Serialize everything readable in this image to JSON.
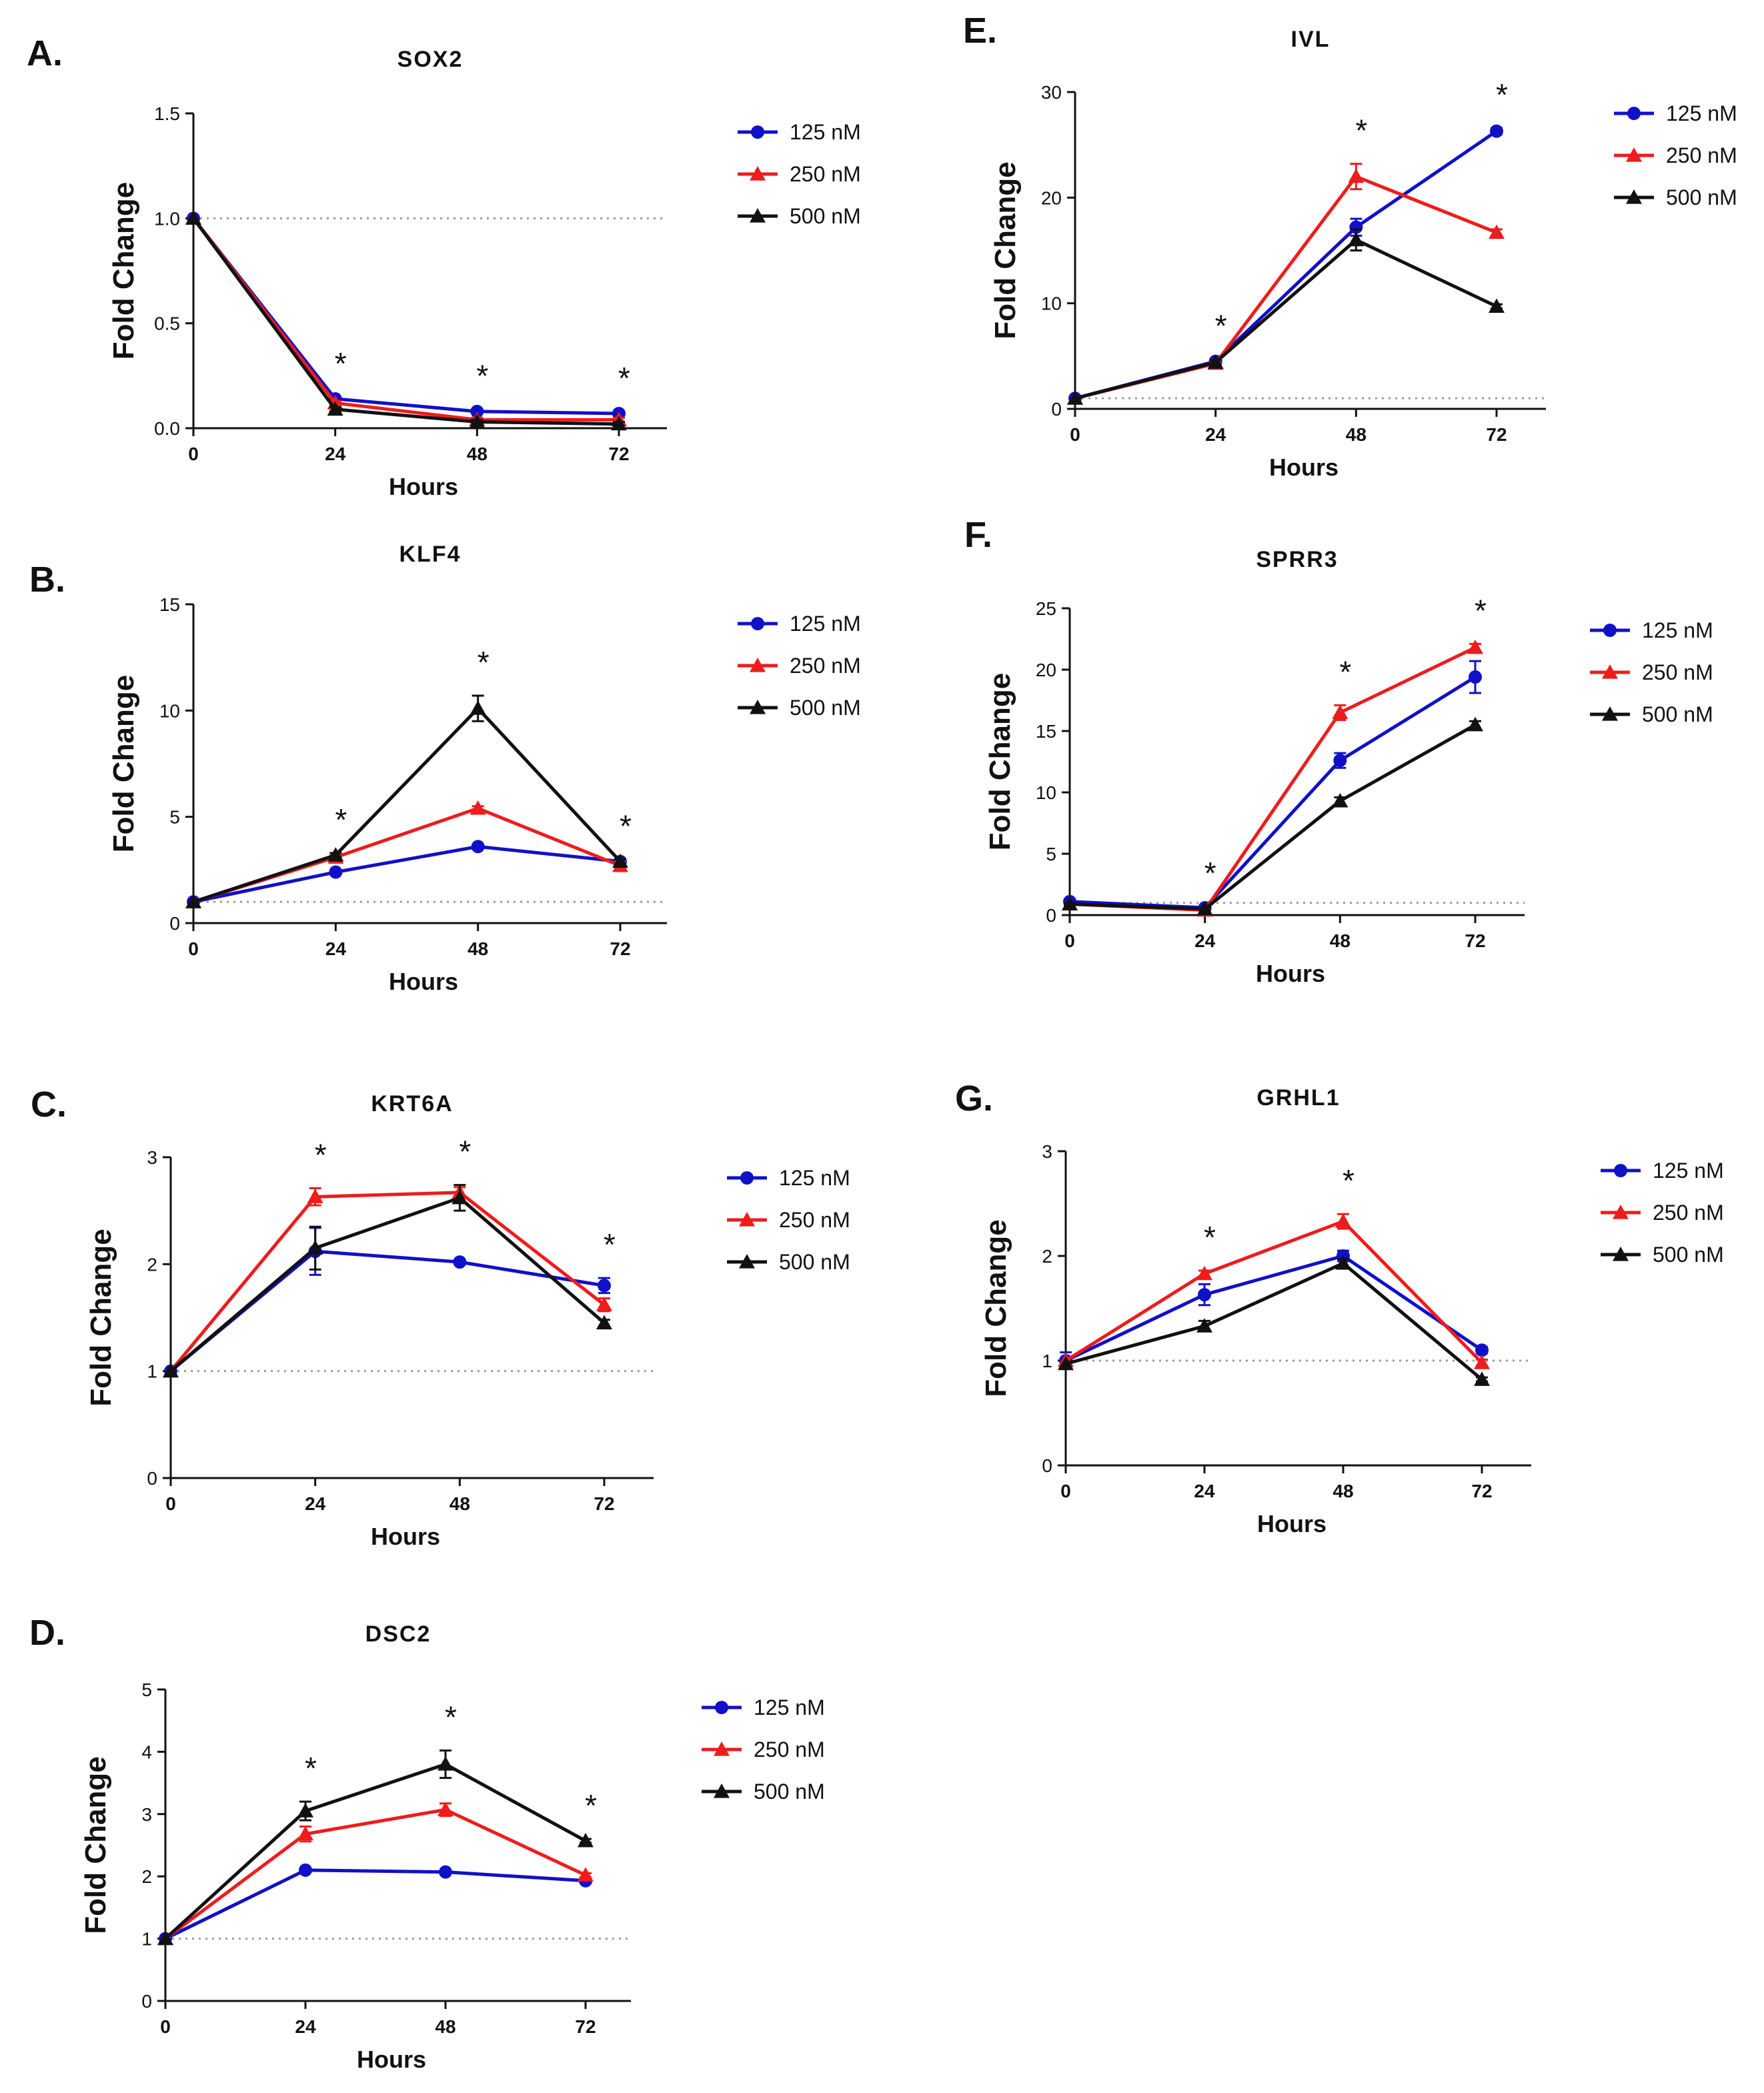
{
  "figure": {
    "series_colors": {
      "125 nM": "#1010c8",
      "250 nM": "#ee1c1c",
      "500 nM": "#111111"
    },
    "axis_color": "#111111",
    "baseline_color": "#9a9a9a"
  },
  "chart_data": [
    {
      "panel": "A.",
      "type": "line",
      "title": "SOX2",
      "xlabel": "Hours",
      "ylabel": "Fold Change",
      "x": [
        0,
        24,
        48,
        72
      ],
      "xticks": [
        "0",
        "24",
        "48",
        "72"
      ],
      "ylim": [
        0,
        1.5
      ],
      "yticks": [
        "0.0",
        "0.5",
        "1.0",
        "1.5"
      ],
      "ytick_values": [
        0,
        0.5,
        1.0,
        1.5
      ],
      "baseline": 1,
      "significance": [
        "",
        "*",
        "*",
        "*"
      ],
      "series": [
        {
          "name": "125 nM",
          "marker": "circle",
          "values": [
            1.0,
            0.14,
            0.08,
            0.07
          ],
          "errors": [
            0,
            0.01,
            0.01,
            0.01
          ]
        },
        {
          "name": "250 nM",
          "marker": "triangle",
          "values": [
            1.0,
            0.12,
            0.04,
            0.04
          ],
          "errors": [
            0,
            0.01,
            0.01,
            0.01
          ]
        },
        {
          "name": "500 nM",
          "marker": "triangle",
          "values": [
            1.0,
            0.09,
            0.03,
            0.02
          ],
          "errors": [
            0,
            0.01,
            0.01,
            0.01
          ]
        }
      ]
    },
    {
      "panel": "B.",
      "type": "line",
      "title": "KLF4",
      "xlabel": "Hours",
      "ylabel": "Fold Change",
      "x": [
        0,
        24,
        48,
        72
      ],
      "xticks": [
        "0",
        "24",
        "48",
        "72"
      ],
      "ylim": [
        0,
        15
      ],
      "yticks": [
        "0",
        "5",
        "10",
        "15"
      ],
      "ytick_values": [
        0,
        5,
        10,
        15
      ],
      "baseline": 1,
      "significance": [
        "",
        "*",
        "*",
        "*"
      ],
      "series": [
        {
          "name": "125 nM",
          "marker": "circle",
          "values": [
            1.0,
            2.4,
            3.6,
            2.9
          ],
          "errors": [
            0,
            0.1,
            0.1,
            0.1
          ]
        },
        {
          "name": "250 nM",
          "marker": "triangle",
          "values": [
            1.0,
            3.1,
            5.4,
            2.7
          ],
          "errors": [
            0,
            0.1,
            0.1,
            0.2
          ]
        },
        {
          "name": "500 nM",
          "marker": "triangle",
          "values": [
            1.0,
            3.2,
            10.1,
            2.9
          ],
          "errors": [
            0,
            0.1,
            0.6,
            0.1
          ]
        }
      ]
    },
    {
      "panel": "C.",
      "type": "line",
      "title": "KRT6A",
      "xlabel": "Hours",
      "ylabel": "Fold Change",
      "x": [
        0,
        24,
        48,
        72
      ],
      "xticks": [
        "0",
        "24",
        "48",
        "72"
      ],
      "ylim": [
        0,
        3
      ],
      "yticks": [
        "0",
        "1",
        "2",
        "3"
      ],
      "ytick_values": [
        0,
        1,
        2,
        3
      ],
      "baseline": 1,
      "significance": [
        "",
        "*",
        "*",
        "*"
      ],
      "series": [
        {
          "name": "125 nM",
          "marker": "circle",
          "values": [
            1.0,
            2.12,
            2.02,
            1.8
          ],
          "errors": [
            0,
            0.22,
            0.02,
            0.07
          ]
        },
        {
          "name": "250 nM",
          "marker": "triangle",
          "values": [
            1.0,
            2.63,
            2.67,
            1.62
          ],
          "errors": [
            0,
            0.08,
            0.05,
            0.06
          ]
        },
        {
          "name": "500 nM",
          "marker": "triangle",
          "values": [
            1.0,
            2.15,
            2.62,
            1.45
          ],
          "errors": [
            0,
            0.2,
            0.12,
            0.03
          ]
        }
      ]
    },
    {
      "panel": "D.",
      "type": "line",
      "title": "DSC2",
      "xlabel": "Hours",
      "ylabel": "Fold Change",
      "x": [
        0,
        24,
        48,
        72
      ],
      "xticks": [
        "0",
        "24",
        "48",
        "72"
      ],
      "ylim": [
        0,
        5
      ],
      "yticks": [
        "0",
        "1",
        "2",
        "3",
        "4",
        "5"
      ],
      "ytick_values": [
        0,
        1,
        2,
        3,
        4,
        5
      ],
      "baseline": 1,
      "significance": [
        "",
        "*",
        "*",
        "*"
      ],
      "series": [
        {
          "name": "125 nM",
          "marker": "circle",
          "values": [
            1.0,
            2.1,
            2.07,
            1.93
          ],
          "errors": [
            0,
            0.03,
            0.03,
            0.04
          ]
        },
        {
          "name": "250 nM",
          "marker": "triangle",
          "values": [
            1.0,
            2.68,
            3.07,
            2.02
          ],
          "errors": [
            0,
            0.12,
            0.1,
            0.03
          ]
        },
        {
          "name": "500 nM",
          "marker": "triangle",
          "values": [
            1.0,
            3.05,
            3.8,
            2.57
          ],
          "errors": [
            0,
            0.15,
            0.22,
            0.03
          ]
        }
      ]
    },
    {
      "panel": "E.",
      "type": "line",
      "title": "IVL",
      "xlabel": "Hours",
      "ylabel": "Fold Change",
      "x": [
        0,
        24,
        48,
        72
      ],
      "xticks": [
        "0",
        "24",
        "48",
        "72"
      ],
      "ylim": [
        0,
        30
      ],
      "yticks": [
        "0",
        "10",
        "20",
        "30"
      ],
      "ytick_values": [
        0,
        10,
        20,
        30
      ],
      "baseline": 1,
      "significance": [
        "",
        "*",
        "*",
        "*"
      ],
      "series": [
        {
          "name": "125 nM",
          "marker": "circle",
          "values": [
            1.0,
            4.5,
            17.2,
            26.3
          ],
          "errors": [
            0,
            0.2,
            0.8,
            0.3
          ]
        },
        {
          "name": "250 nM",
          "marker": "triangle",
          "values": [
            1.0,
            4.3,
            22.0,
            16.7
          ],
          "errors": [
            0,
            0.2,
            1.2,
            0.3
          ]
        },
        {
          "name": "500 nM",
          "marker": "triangle",
          "values": [
            1.0,
            4.4,
            16.0,
            9.7
          ],
          "errors": [
            0,
            0.2,
            1.0,
            0.2
          ]
        }
      ]
    },
    {
      "panel": "F.",
      "type": "line",
      "title": "SPRR3",
      "xlabel": "Hours",
      "ylabel": "Fold Change",
      "x": [
        0,
        24,
        48,
        72
      ],
      "xticks": [
        "0",
        "24",
        "48",
        "72"
      ],
      "ylim": [
        0,
        25
      ],
      "yticks": [
        "0",
        "5",
        "10",
        "15",
        "20",
        "25"
      ],
      "ytick_values": [
        0,
        5,
        10,
        15,
        20,
        25
      ],
      "baseline": 1,
      "significance": [
        "",
        "*",
        "*",
        "*"
      ],
      "series": [
        {
          "name": "125 nM",
          "marker": "circle",
          "values": [
            1.1,
            0.6,
            12.6,
            19.4
          ],
          "errors": [
            0.2,
            0.1,
            0.6,
            1.3
          ]
        },
        {
          "name": "250 nM",
          "marker": "triangle",
          "values": [
            0.9,
            0.4,
            16.5,
            21.8
          ],
          "errors": [
            0.1,
            0.1,
            0.6,
            0.3
          ]
        },
        {
          "name": "500 nM",
          "marker": "triangle",
          "values": [
            0.9,
            0.5,
            9.3,
            15.5
          ],
          "errors": [
            0.1,
            0.1,
            0.3,
            0.3
          ]
        }
      ]
    },
    {
      "panel": "G.",
      "type": "line",
      "title": "GRHL1",
      "xlabel": "Hours",
      "ylabel": "Fold Change",
      "x": [
        0,
        24,
        48,
        72
      ],
      "xticks": [
        "0",
        "24",
        "48",
        "72"
      ],
      "ylim": [
        0,
        3
      ],
      "yticks": [
        "0",
        "1",
        "2",
        "3"
      ],
      "ytick_values": [
        0,
        1,
        2,
        3
      ],
      "baseline": 1,
      "significance": [
        "",
        "*",
        "*",
        ""
      ],
      "series": [
        {
          "name": "125 nM",
          "marker": "circle",
          "values": [
            1.0,
            1.63,
            2.0,
            1.1
          ],
          "errors": [
            0.08,
            0.1,
            0.05,
            0.03
          ]
        },
        {
          "name": "250 nM",
          "marker": "triangle",
          "values": [
            1.0,
            1.83,
            2.33,
            0.98
          ],
          "errors": [
            0,
            0.03,
            0.07,
            0.03
          ]
        },
        {
          "name": "500 nM",
          "marker": "triangle",
          "values": [
            0.97,
            1.33,
            1.93,
            0.82
          ],
          "errors": [
            0,
            0.05,
            0.04,
            0.02
          ]
        }
      ]
    }
  ]
}
